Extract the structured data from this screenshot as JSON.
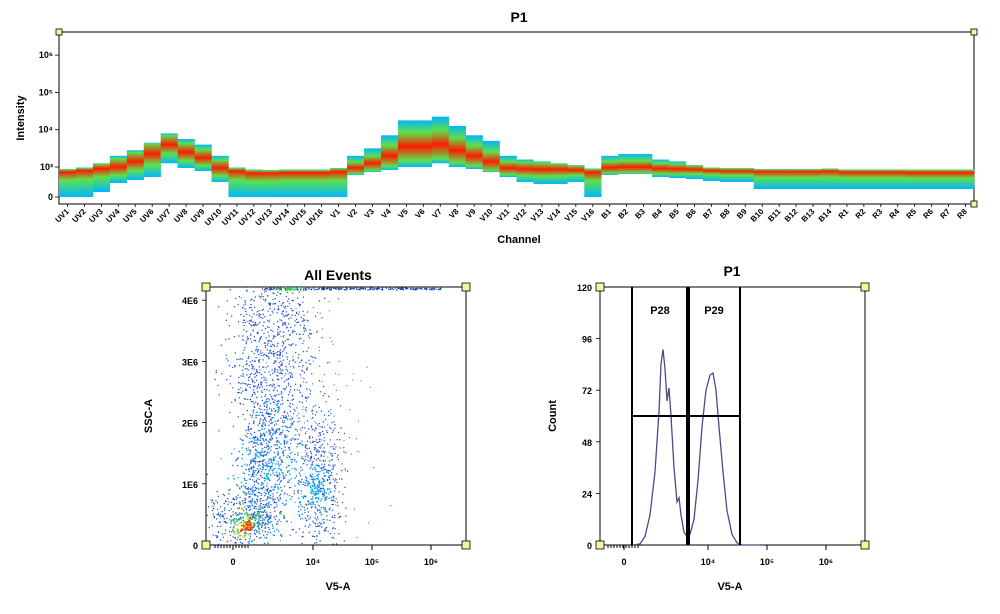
{
  "chart_data": [
    {
      "type": "heatmap",
      "title": "P1",
      "xlabel": "Channel",
      "ylabel": "Intensity",
      "ytick_labels": [
        "0",
        "10³",
        "10⁴",
        "10⁵",
        "10⁶"
      ],
      "categories": [
        "UV1",
        "UV2",
        "UV3",
        "UV4",
        "UV5",
        "UV6",
        "UV7",
        "UV8",
        "UV9",
        "UV10",
        "UV11",
        "UV12",
        "UV13",
        "UV14",
        "UV15",
        "UV16",
        "V1",
        "V2",
        "V3",
        "V4",
        "V5",
        "V6",
        "V7",
        "V8",
        "V9",
        "V10",
        "V11",
        "V12",
        "V13",
        "V14",
        "V15",
        "V16",
        "B1",
        "B2",
        "B3",
        "B4",
        "B5",
        "B6",
        "B7",
        "B8",
        "B9",
        "B10",
        "B11",
        "B12",
        "B13",
        "B14",
        "R1",
        "R2",
        "R3",
        "R4",
        "R5",
        "R6",
        "R7",
        "R8"
      ],
      "median_log10": [
        2.6,
        2.7,
        2.85,
        3.0,
        3.15,
        3.35,
        3.6,
        3.4,
        3.25,
        2.9,
        2.6,
        2.4,
        2.4,
        2.45,
        2.45,
        2.45,
        2.55,
        2.9,
        3.1,
        3.3,
        3.55,
        3.55,
        3.6,
        3.45,
        3.3,
        3.15,
        2.9,
        2.8,
        2.75,
        2.75,
        2.7,
        2.5,
        2.95,
        3.0,
        3.0,
        2.85,
        2.8,
        2.75,
        2.65,
        2.6,
        2.6,
        2.55,
        2.55,
        2.55,
        2.55,
        2.6,
        2.5,
        2.5,
        2.5,
        2.5,
        2.45,
        2.45,
        2.45,
        2.45
      ],
      "top_log10": [
        2.8,
        2.95,
        3.1,
        3.3,
        3.45,
        3.65,
        3.9,
        3.75,
        3.6,
        3.3,
        2.95,
        2.75,
        2.7,
        2.75,
        2.75,
        2.75,
        2.9,
        3.3,
        3.5,
        3.85,
        4.25,
        4.25,
        4.35,
        4.1,
        3.85,
        3.7,
        3.3,
        3.2,
        3.15,
        3.1,
        3.05,
        2.85,
        3.3,
        3.35,
        3.35,
        3.2,
        3.15,
        3.05,
        2.95,
        2.9,
        2.9,
        2.8,
        2.8,
        2.8,
        2.8,
        2.85,
        2.75,
        2.75,
        2.75,
        2.75,
        2.75,
        2.75,
        2.75,
        2.75
      ],
      "bottom_log10": [
        0,
        0,
        0.5,
        1.4,
        1.7,
        2.0,
        3.1,
        2.9,
        2.6,
        1.5,
        0,
        0,
        0,
        0,
        0,
        0,
        0,
        2.2,
        2.5,
        2.7,
        3.0,
        3.0,
        3.1,
        3.0,
        2.8,
        2.5,
        2.0,
        1.5,
        1.3,
        1.3,
        1.5,
        0,
        2.2,
        2.3,
        2.3,
        2.0,
        1.9,
        1.8,
        1.6,
        1.5,
        1.5,
        0.8,
        0.8,
        0.8,
        0.8,
        0.8,
        0.8,
        0.8,
        0.8,
        0.8,
        0.8,
        0.8,
        0.8,
        0.8
      ],
      "colors": {
        "low": "#00b7ff",
        "mid": "#5ee04a",
        "high": "#ff1a00"
      }
    },
    {
      "type": "scatter",
      "title": "All Events",
      "xlabel": "V5-A",
      "ylabel": "SSC-A",
      "x_scale": "biexponential",
      "xtick_labels": [
        "0",
        "10⁴",
        "10⁵",
        "10⁶"
      ],
      "ytick_labels": [
        "0",
        "1E6",
        "2E6",
        "3E6",
        "4E6"
      ],
      "ylim": [
        0,
        4200000
      ],
      "populations": [
        {
          "center_x": 200,
          "center_y": 300000,
          "note": "dense core"
        },
        {
          "center_x": 2000,
          "center_y": 1200000
        },
        {
          "center_x": 10000,
          "center_y": 700000
        }
      ]
    },
    {
      "type": "line",
      "title": "P1",
      "xlabel": "V5-A",
      "ylabel": "Count",
      "x_scale": "biexponential",
      "xtick_labels": [
        "0",
        "10⁴",
        "10⁵",
        "10⁶"
      ],
      "ytick_labels": [
        "0",
        "24",
        "48",
        "72",
        "96",
        "120"
      ],
      "ylim": [
        0,
        120
      ],
      "peaks": [
        {
          "x": 2000,
          "count": 91
        },
        {
          "x": 3000,
          "count": 73
        },
        {
          "x": 10000,
          "count": 80
        }
      ],
      "gates": [
        {
          "name": "P28",
          "x_start": 0,
          "x_end": 5000
        },
        {
          "name": "P29",
          "x_start": 5000,
          "x_end": 30000
        }
      ],
      "gate_level": 60,
      "line_color": "#4a4a8a"
    }
  ]
}
